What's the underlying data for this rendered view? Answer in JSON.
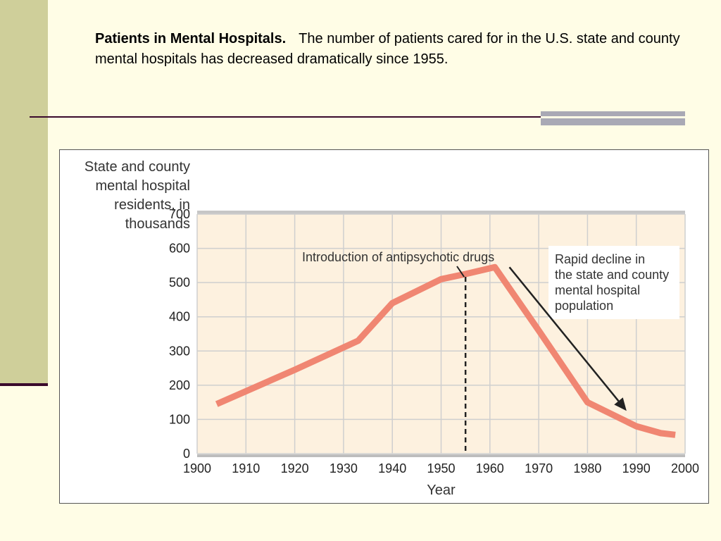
{
  "caption": {
    "title": "Patients in Mental Hospitals.",
    "text": "The number of patients cared for in the U.S. state and county mental hospitals has decreased dramatically since 1955."
  },
  "chart_data": {
    "type": "line",
    "ylabel_lines": [
      "State and county",
      "mental hospital",
      "residents, in",
      "thousands"
    ],
    "xlabel": "Year",
    "xlim": [
      1900,
      2000
    ],
    "ylim": [
      0,
      700
    ],
    "x_ticks": [
      1900,
      1910,
      1920,
      1930,
      1940,
      1950,
      1960,
      1970,
      1980,
      1990,
      2000
    ],
    "y_ticks": [
      0,
      100,
      200,
      300,
      400,
      500,
      600,
      700
    ],
    "grid": true,
    "series": [
      {
        "color": "#f08672",
        "x": [
          1904,
          1920,
          1933,
          1940,
          1950,
          1955,
          1961,
          1970,
          1980,
          1990,
          1995,
          1998
        ],
        "y": [
          145,
          245,
          330,
          440,
          510,
          525,
          545,
          360,
          150,
          80,
          60,
          55
        ]
      }
    ],
    "annotations": {
      "vline_year": 1955,
      "drug_label": "Introduction of antipsychotic drugs",
      "decline_lines": [
        "Rapid decline in",
        "the state and county",
        "mental hospital",
        "population"
      ],
      "arrow_from": [
        1964,
        545
      ],
      "arrow_to": [
        1988,
        125
      ]
    }
  }
}
